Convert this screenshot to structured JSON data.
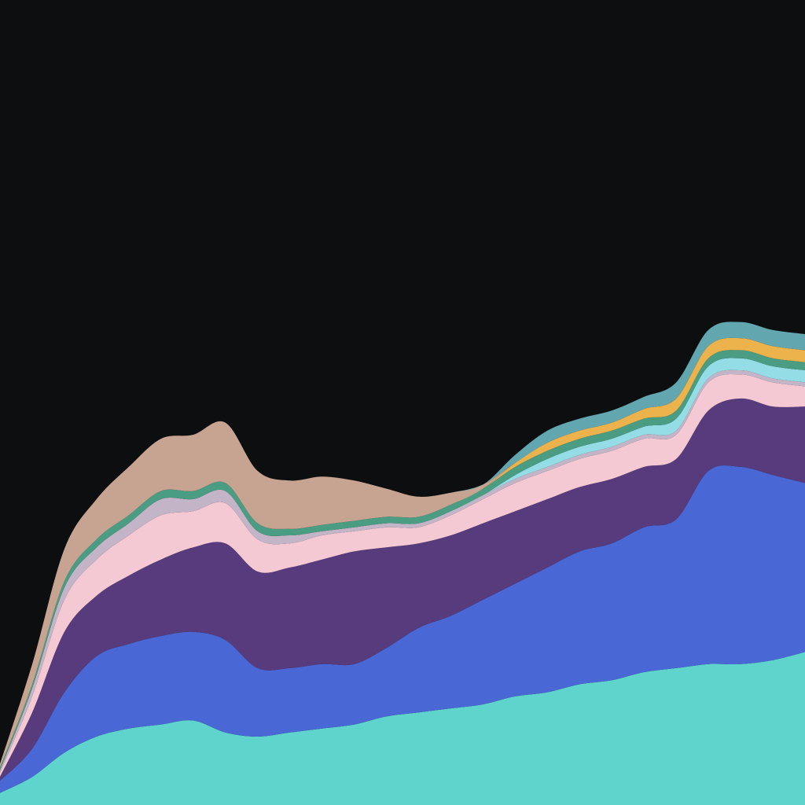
{
  "chart_data": {
    "type": "area",
    "stacked": true,
    "baseline": "zero",
    "axes_visible": false,
    "grid": false,
    "legend": "none",
    "background": "#0d0e0f",
    "x": [
      0,
      2,
      4,
      6,
      8,
      10,
      12,
      14,
      16,
      18,
      20,
      22,
      24,
      26,
      28,
      30,
      32,
      34,
      36,
      38,
      40,
      42,
      44,
      46,
      48,
      50
    ],
    "ylim": [
      0,
      100
    ],
    "series": [
      {
        "color": "#5ed4cc",
        "values": [
          1.5,
          3.5,
          6.5,
          8.5,
          9.5,
          10,
          10.5,
          9,
          8.5,
          9,
          9.5,
          10,
          11,
          11.5,
          12,
          12.5,
          13.5,
          14,
          15,
          15.5,
          16.5,
          17,
          17.5,
          17.5,
          18,
          19
        ]
      },
      {
        "color": "#4a67d6",
        "values": [
          1.5,
          3.5,
          7.5,
          10,
          10.5,
          11,
          11,
          11.5,
          8.5,
          8,
          8,
          7.5,
          8.5,
          10.5,
          11.5,
          13,
          14,
          15.5,
          16.5,
          17,
          18,
          18.5,
          24,
          24.5,
          23,
          21
        ]
      },
      {
        "color": "#583b7c",
        "values": [
          0.5,
          4.5,
          7.5,
          7.5,
          8.5,
          9.5,
          10.5,
          12,
          12,
          12.5,
          13,
          14,
          12.5,
          10.5,
          10,
          9.5,
          9,
          8.5,
          8,
          8,
          7.5,
          7.5,
          7.5,
          8.5,
          8.5,
          9.5
        ]
      },
      {
        "color": "#f5c9d3",
        "values": [
          0.5,
          2,
          4,
          4.5,
          5,
          5.5,
          4.5,
          5,
          4,
          3,
          3,
          2.5,
          2.5,
          2,
          2.5,
          3,
          3.5,
          3.5,
          3.5,
          3.5,
          3.5,
          3,
          3.5,
          3,
          3,
          2.5
        ]
      },
      {
        "color": "#c4b4c8",
        "values": [
          0.3,
          1,
          1.5,
          1.5,
          1.5,
          2,
          1.5,
          1.5,
          1,
          1,
          0.5,
          0.5,
          0.5,
          0.5,
          0.5,
          0.5,
          0.5,
          0.5,
          0.5,
          0.5,
          0.5,
          0.5,
          0.5,
          0.5,
          0.5,
          0.5
        ]
      },
      {
        "color": "#95dde6",
        "values": [
          0,
          0,
          0,
          0,
          0,
          0,
          0,
          0,
          0,
          0,
          0,
          0,
          0,
          0,
          0,
          0,
          0.5,
          1,
          1,
          1,
          1,
          1.5,
          1.5,
          1.5,
          1.5,
          1.5
        ]
      },
      {
        "color": "#4a9c82",
        "values": [
          0.3,
          0.5,
          0.8,
          1,
          1,
          1,
          1,
          1,
          1,
          0.8,
          0.8,
          0.8,
          0.8,
          0.8,
          0.8,
          0.8,
          1,
          1,
          1,
          1,
          1,
          1,
          1,
          1,
          1,
          1
        ]
      },
      {
        "color": "#ecb24c",
        "values": [
          0,
          0,
          0,
          0,
          0,
          0,
          0,
          0,
          0,
          0,
          0,
          0,
          0,
          0,
          0,
          0,
          0.5,
          1,
          1,
          1,
          1.2,
          1.5,
          1.5,
          1.5,
          1.5,
          1.5
        ]
      },
      {
        "color": "#c7a392",
        "values": [
          0.5,
          2.5,
          4,
          5,
          6,
          6.5,
          7,
          7.5,
          6.5,
          6,
          6,
          5,
          3.5,
          2.5,
          1.5,
          0.5,
          0,
          0,
          0,
          0,
          0,
          0,
          0,
          0,
          0,
          0
        ]
      },
      {
        "color": "#62a6b0",
        "values": [
          0,
          0,
          0,
          0,
          0,
          0,
          0,
          0,
          0,
          0,
          0,
          0,
          0,
          0,
          0,
          0,
          1,
          1.5,
          1.5,
          1.5,
          1.5,
          2,
          2,
          2,
          2,
          2
        ]
      }
    ]
  }
}
